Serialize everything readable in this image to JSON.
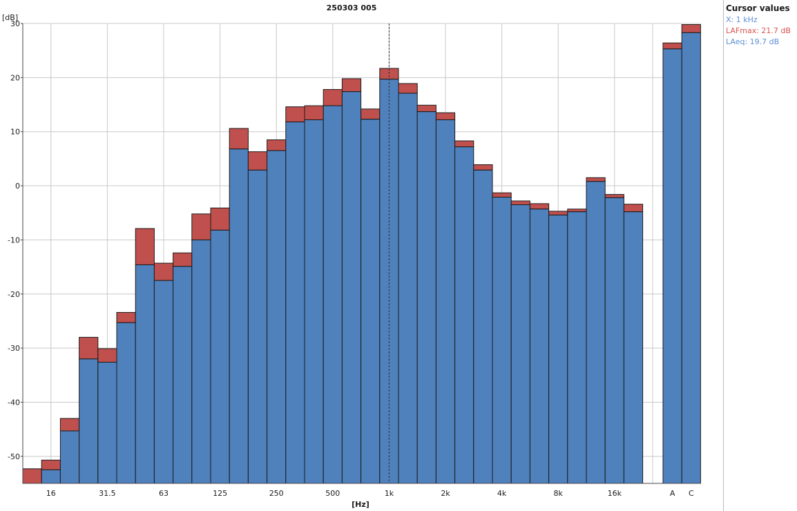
{
  "chart_data": {
    "type": "bar",
    "title": "250303 005",
    "ylabel": "[dB]",
    "xlabel": "[Hz]",
    "ylim": [
      -55,
      30
    ],
    "yticks": [
      30,
      20,
      10,
      0,
      -10,
      -20,
      -30,
      -40,
      -50
    ],
    "grid": true,
    "legend": "none",
    "bands": [
      {
        "label": "",
        "laeq": -55,
        "lafmax": -52.3
      },
      {
        "label": "16",
        "laeq": -52.5,
        "lafmax": -50.7
      },
      {
        "label": "",
        "laeq": -45.3,
        "lafmax": -43.0
      },
      {
        "label": "",
        "laeq": -32.0,
        "lafmax": -28.0
      },
      {
        "label": "31.5",
        "laeq": -32.6,
        "lafmax": -30.1
      },
      {
        "label": "",
        "laeq": -25.3,
        "lafmax": -23.4
      },
      {
        "label": "",
        "laeq": -14.6,
        "lafmax": -7.9
      },
      {
        "label": "63",
        "laeq": -17.5,
        "lafmax": -14.3
      },
      {
        "label": "",
        "laeq": -14.9,
        "lafmax": -12.4
      },
      {
        "label": "",
        "laeq": -10.0,
        "lafmax": -5.2
      },
      {
        "label": "125",
        "laeq": -8.2,
        "lafmax": -4.1
      },
      {
        "label": "",
        "laeq": 6.8,
        "lafmax": 10.6
      },
      {
        "label": "",
        "laeq": 2.9,
        "lafmax": 6.3
      },
      {
        "label": "250",
        "laeq": 6.5,
        "lafmax": 8.5
      },
      {
        "label": "",
        "laeq": 11.8,
        "lafmax": 14.6
      },
      {
        "label": "",
        "laeq": 12.2,
        "lafmax": 14.8
      },
      {
        "label": "500",
        "laeq": 14.8,
        "lafmax": 17.8
      },
      {
        "label": "",
        "laeq": 17.4,
        "lafmax": 19.8
      },
      {
        "label": "",
        "laeq": 12.3,
        "lafmax": 14.2
      },
      {
        "label": "1k",
        "laeq": 19.7,
        "lafmax": 21.7
      },
      {
        "label": "",
        "laeq": 17.1,
        "lafmax": 18.9
      },
      {
        "label": "",
        "laeq": 13.7,
        "lafmax": 14.9
      },
      {
        "label": "2k",
        "laeq": 12.2,
        "lafmax": 13.5
      },
      {
        "label": "",
        "laeq": 7.2,
        "lafmax": 8.3
      },
      {
        "label": "",
        "laeq": 2.9,
        "lafmax": 3.9
      },
      {
        "label": "4k",
        "laeq": -2.1,
        "lafmax": -1.3
      },
      {
        "label": "",
        "laeq": -3.5,
        "lafmax": -2.8
      },
      {
        "label": "",
        "laeq": -4.3,
        "lafmax": -3.3
      },
      {
        "label": "8k",
        "laeq": -5.4,
        "lafmax": -4.7
      },
      {
        "label": "",
        "laeq": -4.8,
        "lafmax": -4.3
      },
      {
        "label": "",
        "laeq": 0.8,
        "lafmax": 1.5
      },
      {
        "label": "16k",
        "laeq": -2.2,
        "lafmax": -1.6
      },
      {
        "label": "",
        "laeq": -4.8,
        "lafmax": -3.4
      }
    ],
    "totals": [
      {
        "label": "A",
        "laeq": 25.3,
        "lafmax": 26.4
      },
      {
        "label": "C",
        "laeq": 28.3,
        "lafmax": 29.8
      }
    ],
    "series": [
      {
        "name": "LAeq",
        "color": "#4f81bd"
      },
      {
        "name": "LAFmax",
        "color": "#c0504d"
      }
    ],
    "cursor_band": "1k"
  },
  "cursor_panel": {
    "title": "Cursor values",
    "x_line": "X: 1 kHz",
    "lafmax_line": "LAFmax: 21.7 dB",
    "laeq_line": "LAeq: 19.7 dB",
    "x_color": "#5b8ed6",
    "lafmax_color": "#d9534f",
    "laeq_color": "#5b8ed6"
  }
}
